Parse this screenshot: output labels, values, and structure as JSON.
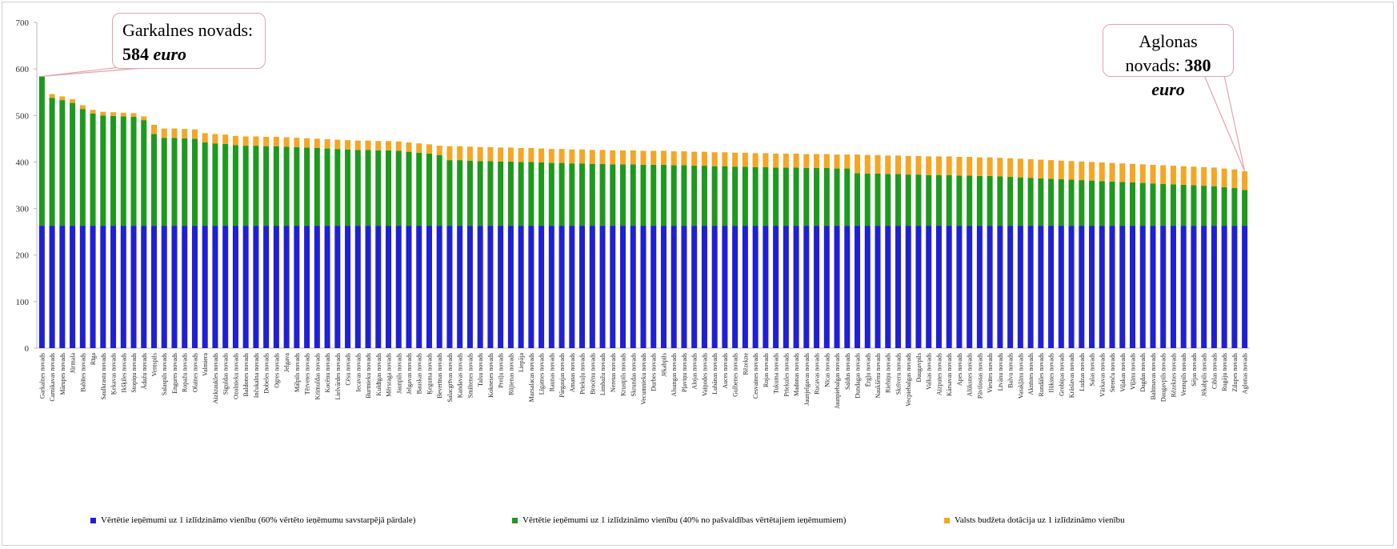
{
  "chart_data": {
    "type": "stacked_bar",
    "categories": [
      "Garkalnes novads",
      "Carnikavas novads",
      "Mārupes novads",
      "Jūrmala",
      "Babītes novads",
      "Rīga",
      "Saulkrastu novads",
      "Ķekavas novads",
      "Ikšķiles novads",
      "Stopiņu novads",
      "Ādažu novads",
      "Ventspils",
      "Salaspils novads",
      "Engures novads",
      "Ropažu novads",
      "Olaines novads",
      "Valmiera",
      "Aizkraukles novads",
      "Siguldas novads",
      "Ozolnieku novads",
      "Baldones novads",
      "Inčukalna novads",
      "Dobeles novads",
      "Ogres novads",
      "Jelgava",
      "Mālpils novads",
      "Tērvetes novads",
      "Krimuldas novads",
      "Kocēnu novads",
      "Lielvārdes novads",
      "Cēsu novads",
      "Iecavas novads",
      "Burtnieku novads",
      "Kuldīgas novads",
      "Mērsraga novads",
      "Jaunpils novads",
      "Jelgavas novads",
      "Bauskas novads",
      "Ķeguma novads",
      "Beverīnas novads",
      "Salacgrīvas novads",
      "Kandavas novads",
      "Smiltenes novads",
      "Talsu novads",
      "Kokneses novads",
      "Preiļu novads",
      "Rūjienas novads",
      "Liepāja",
      "Mazsalacas novads",
      "Līgatnes novads",
      "Raunas novads",
      "Pārgaujas novads",
      "Amatas novads",
      "Priekuļu novads",
      "Brocēnu novads",
      "Limbažu novads",
      "Neretas novads",
      "Krustpils novads",
      "Skrundas novads",
      "Vecumnieku novads",
      "Durbes novads",
      "Jēkabpils",
      "Alsungas novads",
      "Pļaviņu novads",
      "Alojas novads",
      "Vaiņodes novads",
      "Lubānas novads",
      "Auces novads",
      "Gulbenes novads",
      "Rēzekne",
      "Cesvaines novads",
      "Rojas novads",
      "Tukuma novads",
      "Priekules novads",
      "Madonas novads",
      "Jaunjelgavas novads",
      "Rucavas novads",
      "Nīcas novads",
      "Jaunpiebalgas novads",
      "Saldus novads",
      "Dundagas novads",
      "Ērgļu novads",
      "Naukšēnu novads",
      "Riebiņu novads",
      "Skrīveru novads",
      "Vecpiebalgas novads",
      "Daugavpils",
      "Valkas novads",
      "Aizputes novads",
      "Kārsavas novads",
      "Apes novads",
      "Alūksnes novads",
      "Pāvilostas novads",
      "Viesītes novads",
      "Līvānu novads",
      "Balvu novads",
      "Varakļānu novads",
      "Aknīstes novads",
      "Rundāles novads",
      "Ilūkstes novads",
      "Grobiņas novads",
      "Krāslavas novads",
      "Ludzas novads",
      "Salas novads",
      "Vārkavas novads",
      "Strenču novads",
      "Viļakas novads",
      "Viļānu novads",
      "Dagdas novads",
      "Baltinavas novads",
      "Daugavpils novads",
      "Rēzeknes novads",
      "Ventspils novads",
      "Sējas novads",
      "Jēkabpils novads",
      "Ciblas novads",
      "Rugāju novads",
      "Zilupes novads",
      "Aglonas novads"
    ],
    "series": [
      {
        "name": "Vērtētie ieņēmumi uz 1 izlīdzināmo vienību (60% vērtēto ieņēmumu savstarpējā pārdale)",
        "color": "#1f1fd6",
        "values": [
          263,
          263,
          263,
          263,
          263,
          263,
          263,
          263,
          263,
          263,
          263,
          263,
          263,
          263,
          263,
          263,
          263,
          263,
          263,
          263,
          263,
          263,
          263,
          263,
          263,
          263,
          263,
          263,
          263,
          263,
          263,
          263,
          263,
          263,
          263,
          263,
          263,
          263,
          263,
          263,
          263,
          263,
          263,
          263,
          263,
          263,
          263,
          263,
          263,
          263,
          263,
          263,
          263,
          263,
          263,
          263,
          263,
          263,
          263,
          263,
          263,
          263,
          263,
          263,
          263,
          263,
          263,
          263,
          263,
          263,
          263,
          263,
          263,
          263,
          263,
          263,
          263,
          263,
          263,
          263,
          263,
          263,
          263,
          263,
          263,
          263,
          263,
          263,
          263,
          263,
          263,
          263,
          263,
          263,
          263,
          263,
          263,
          263,
          263,
          263,
          263,
          263,
          263,
          263,
          263,
          263,
          263,
          263,
          263,
          263,
          263,
          263,
          263,
          263,
          263,
          263,
          263,
          263,
          263
        ]
      },
      {
        "name": "Vērtētie ieņēmumi uz 1 izlīdzināmo vienību (40% no pašvaldības vērtētajiem ieņēmumiem)",
        "color": "#1d9a1d",
        "values": [
          321,
          275,
          270,
          264,
          251,
          241,
          237,
          236,
          235,
          234,
          227,
          197,
          189,
          189,
          188,
          187,
          179,
          177,
          176,
          173,
          172,
          172,
          171,
          171,
          170,
          169,
          168,
          167,
          166,
          165,
          164,
          163,
          163,
          162,
          162,
          161,
          159,
          157,
          155,
          152,
          141,
          141,
          140,
          139,
          139,
          138,
          138,
          137,
          137,
          136,
          135,
          135,
          134,
          134,
          133,
          133,
          132,
          132,
          132,
          131,
          131,
          131,
          130,
          130,
          129,
          129,
          128,
          128,
          127,
          127,
          126,
          126,
          125,
          125,
          125,
          124,
          124,
          124,
          123,
          123,
          113,
          112,
          112,
          111,
          111,
          110,
          110,
          109,
          109,
          109,
          108,
          108,
          107,
          107,
          106,
          105,
          104,
          103,
          102,
          101,
          100,
          99,
          98,
          97,
          96,
          95,
          94,
          93,
          92,
          91,
          90,
          89,
          88,
          87,
          86,
          85,
          83,
          81,
          77
        ]
      },
      {
        "name": "Valsts budžeta dotācija uz 1 izlīdzināmo vienību",
        "color": "#f5a623",
        "values": [
          0,
          8,
          8,
          8,
          8,
          8,
          8,
          8,
          8,
          8,
          8,
          20,
          20,
          20,
          20,
          20,
          20,
          20,
          20,
          20,
          20,
          20,
          20,
          20,
          20,
          20,
          20,
          20,
          20,
          20,
          20,
          20,
          20,
          20,
          20,
          20,
          20,
          20,
          20,
          20,
          30,
          30,
          30,
          30,
          30,
          30,
          30,
          30,
          30,
          30,
          30,
          30,
          30,
          30,
          30,
          30,
          30,
          30,
          30,
          30,
          30,
          30,
          30,
          30,
          30,
          30,
          30,
          30,
          30,
          30,
          30,
          30,
          30,
          30,
          30,
          30,
          30,
          30,
          30,
          30,
          40,
          40,
          40,
          40,
          40,
          40,
          40,
          40,
          40,
          40,
          40,
          40,
          40,
          40,
          40,
          40,
          40,
          40,
          40,
          40,
          40,
          40,
          40,
          40,
          40,
          40,
          40,
          40,
          40,
          40,
          40,
          40,
          40,
          40,
          40,
          40,
          40,
          40,
          40
        ]
      }
    ],
    "ylim": [
      0,
      700
    ],
    "yticks": [
      0,
      100,
      200,
      300,
      400,
      500,
      600,
      700
    ],
    "grid": false,
    "legend": "bottom",
    "annotations": [
      {
        "label": "Garkalnes novads:",
        "value": 584,
        "unit": "euro"
      },
      {
        "label": "Aglonas novads:",
        "value": 380,
        "unit": "euro"
      }
    ]
  }
}
